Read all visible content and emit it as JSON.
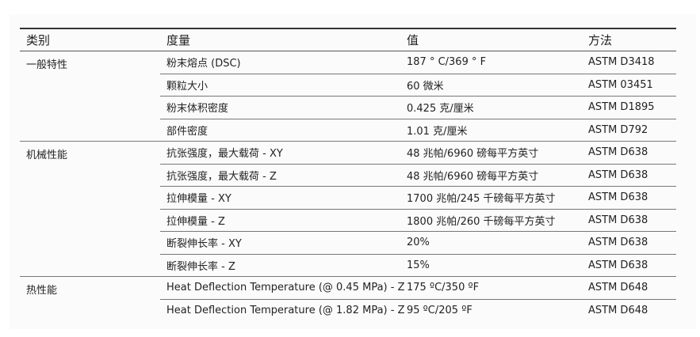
{
  "header": {
    "category": "类别",
    "measure": "度量",
    "value": "值",
    "method": "方法"
  },
  "groups": [
    {
      "category": "一般特性",
      "rows": [
        {
          "measure": "粉末熔点 (DSC)",
          "value": "187 ° C/369 ° F",
          "method": "ASTM D3418"
        },
        {
          "measure": "颗粒大小",
          "value": "60 微米",
          "method": "ASTM 03451"
        },
        {
          "measure": "粉末体积密度",
          "value": "0.425 克/厘米",
          "method": "ASTM D1895"
        },
        {
          "measure": "部件密度",
          "value": "1.01 克/厘米",
          "method": "ASTM D792"
        }
      ]
    },
    {
      "category": "机械性能",
      "rows": [
        {
          "measure": "抗张强度，最大载荷 - XY",
          "value": "48 兆帕/6960 磅每平方英寸",
          "method": "ASTM D638"
        },
        {
          "measure": "抗张强度，最大载荷 - Z",
          "value": "48 兆帕/6960 磅每平方英寸",
          "method": "ASTM D638"
        },
        {
          "measure": "拉伸模量 - XY",
          "value": "1700 兆帕/245 千磅每平方英寸",
          "method": "ASTM D638"
        },
        {
          "measure": "拉伸模量 - Z",
          "value": "1800 兆帕/260 千磅每平方英寸",
          "method": "ASTM D638"
        },
        {
          "measure": "断裂伸长率 - XY",
          "value": "20%",
          "method": "ASTM D638"
        },
        {
          "measure": "断裂伸长率 - Z",
          "value": "15%",
          "method": "ASTM D638"
        }
      ]
    },
    {
      "category": "热性能",
      "rows": [
        {
          "measure": "Heat Deflection Temperature (@ 0.45 MPa) - Z",
          "value": "175 ºC/350 ºF",
          "method": "ASTM D648"
        },
        {
          "measure": "Heat Deflection Temperature (@ 1.82 MPa) - Z",
          "value": "95 ºC/205 ºF",
          "method": "ASTM D648"
        }
      ]
    }
  ]
}
